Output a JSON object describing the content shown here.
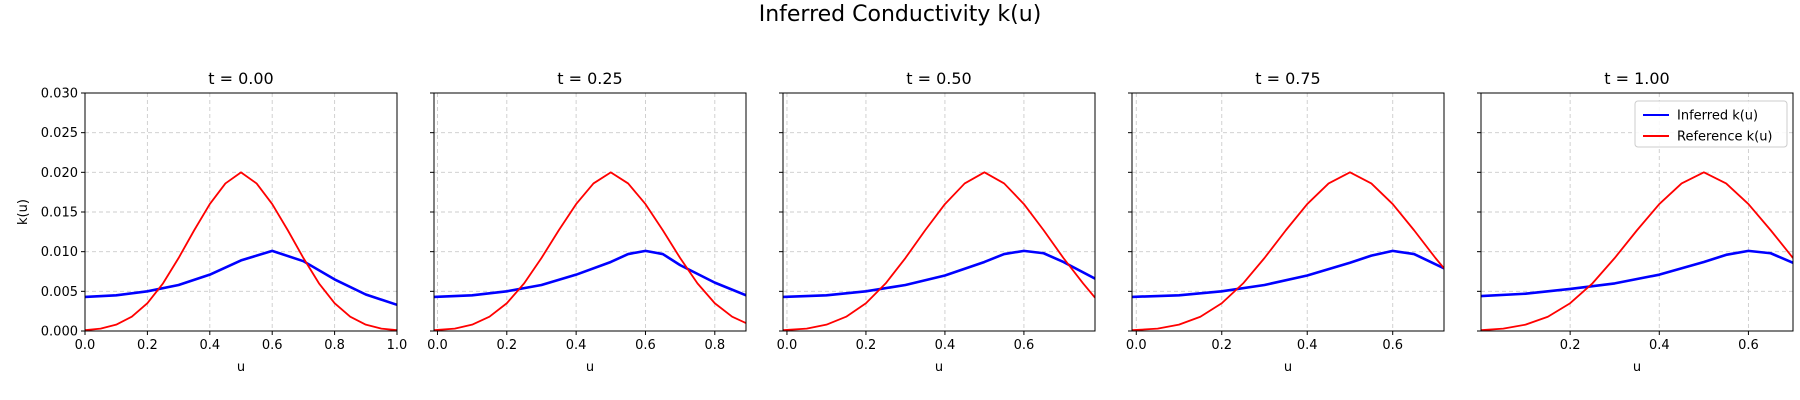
{
  "figure": {
    "title": "Inferred Conductivity k(u)"
  },
  "colors": {
    "inferred": "#0000ff",
    "reference": "#ff0000",
    "grid": "#cccccc"
  },
  "chart_data": [
    {
      "type": "line",
      "title": "t = 0.00",
      "xlabel": "u",
      "ylabel": "k(u)",
      "xlim": [
        0.0,
        1.0
      ],
      "ylim": [
        0.0,
        0.03
      ],
      "xticks": [
        "0.0",
        "0.2",
        "0.4",
        "0.6",
        "0.8",
        "1.0"
      ],
      "xtick_values": [
        0.0,
        0.2,
        0.4,
        0.6,
        0.8,
        1.0
      ],
      "yticks": [
        "0.000",
        "0.005",
        "0.010",
        "0.015",
        "0.020",
        "0.025",
        "0.030"
      ],
      "ytick_values": [
        0.0,
        0.005,
        0.01,
        0.015,
        0.02,
        0.025,
        0.03
      ],
      "grid": true,
      "legend": false,
      "series": [
        {
          "name": "Inferred k(u)",
          "x": [
            0.0,
            0.1,
            0.2,
            0.3,
            0.4,
            0.5,
            0.6,
            0.7,
            0.8,
            0.9,
            1.0
          ],
          "y": [
            0.0043,
            0.0045,
            0.005,
            0.0058,
            0.0071,
            0.0089,
            0.0101,
            0.0088,
            0.0065,
            0.0046,
            0.0033
          ]
        },
        {
          "name": "Reference k(u)",
          "x": [
            0.0,
            0.05,
            0.1,
            0.15,
            0.2,
            0.25,
            0.3,
            0.35,
            0.4,
            0.45,
            0.5,
            0.55,
            0.6,
            0.65,
            0.7,
            0.75,
            0.8,
            0.85,
            0.9,
            0.95,
            1.0
          ],
          "y": [
            0.0001,
            0.0003,
            0.0008,
            0.0018,
            0.0035,
            0.006,
            0.0092,
            0.0127,
            0.016,
            0.0186,
            0.02,
            0.0186,
            0.016,
            0.0127,
            0.0092,
            0.006,
            0.0035,
            0.0018,
            0.0008,
            0.0003,
            0.0001
          ]
        }
      ]
    },
    {
      "type": "line",
      "title": "t = 0.25",
      "xlabel": "u",
      "ylabel": "",
      "xlim": [
        -0.01,
        0.89
      ],
      "ylim": [
        0.0,
        0.03
      ],
      "xticks": [
        "0.0",
        "0.2",
        "0.4",
        "0.6",
        "0.8"
      ],
      "xtick_values": [
        0.0,
        0.2,
        0.4,
        0.6,
        0.8
      ],
      "yticks": [],
      "ytick_values": [
        0.0,
        0.005,
        0.01,
        0.015,
        0.02,
        0.025,
        0.03
      ],
      "grid": true,
      "legend": false,
      "series": [
        {
          "name": "Inferred k(u)",
          "x": [
            -0.01,
            0.1,
            0.2,
            0.3,
            0.4,
            0.5,
            0.55,
            0.6,
            0.65,
            0.7,
            0.8,
            0.89
          ],
          "y": [
            0.0043,
            0.0045,
            0.005,
            0.0058,
            0.0071,
            0.0087,
            0.0097,
            0.0101,
            0.0097,
            0.0083,
            0.0061,
            0.0045
          ]
        },
        {
          "name": "Reference k(u)",
          "x": [
            -0.01,
            0.05,
            0.1,
            0.15,
            0.2,
            0.25,
            0.3,
            0.35,
            0.4,
            0.45,
            0.5,
            0.55,
            0.6,
            0.65,
            0.7,
            0.75,
            0.8,
            0.85,
            0.89
          ],
          "y": [
            0.0001,
            0.0003,
            0.0008,
            0.0018,
            0.0035,
            0.006,
            0.0092,
            0.0127,
            0.016,
            0.0186,
            0.02,
            0.0186,
            0.016,
            0.0127,
            0.0092,
            0.006,
            0.0035,
            0.0018,
            0.001
          ]
        }
      ]
    },
    {
      "type": "line",
      "title": "t = 0.50",
      "xlabel": "u",
      "ylabel": "",
      "xlim": [
        -0.01,
        0.78
      ],
      "ylim": [
        0.0,
        0.03
      ],
      "xticks": [
        "0.0",
        "0.2",
        "0.4",
        "0.6"
      ],
      "xtick_values": [
        0.0,
        0.2,
        0.4,
        0.6
      ],
      "yticks": [],
      "ytick_values": [
        0.0,
        0.005,
        0.01,
        0.015,
        0.02,
        0.025,
        0.03
      ],
      "grid": true,
      "legend": false,
      "series": [
        {
          "name": "Inferred k(u)",
          "x": [
            -0.01,
            0.1,
            0.2,
            0.3,
            0.4,
            0.5,
            0.55,
            0.6,
            0.65,
            0.7,
            0.78
          ],
          "y": [
            0.0043,
            0.0045,
            0.005,
            0.0058,
            0.007,
            0.0087,
            0.0097,
            0.0101,
            0.0098,
            0.0087,
            0.0066
          ]
        },
        {
          "name": "Reference k(u)",
          "x": [
            -0.01,
            0.05,
            0.1,
            0.15,
            0.2,
            0.25,
            0.3,
            0.35,
            0.4,
            0.45,
            0.5,
            0.55,
            0.6,
            0.65,
            0.7,
            0.75,
            0.78
          ],
          "y": [
            0.0001,
            0.0003,
            0.0008,
            0.0018,
            0.0035,
            0.006,
            0.0092,
            0.0127,
            0.016,
            0.0186,
            0.02,
            0.0186,
            0.016,
            0.0127,
            0.0092,
            0.006,
            0.0042
          ]
        }
      ]
    },
    {
      "type": "line",
      "title": "t = 0.75",
      "xlabel": "u",
      "ylabel": "",
      "xlim": [
        -0.01,
        0.72
      ],
      "ylim": [
        0.0,
        0.03
      ],
      "xticks": [
        "0.0",
        "0.2",
        "0.4",
        "0.6"
      ],
      "xtick_values": [
        0.0,
        0.2,
        0.4,
        0.6
      ],
      "yticks": [],
      "ytick_values": [
        0.0,
        0.005,
        0.01,
        0.015,
        0.02,
        0.025,
        0.03
      ],
      "grid": true,
      "legend": false,
      "series": [
        {
          "name": "Inferred k(u)",
          "x": [
            -0.01,
            0.1,
            0.2,
            0.3,
            0.4,
            0.5,
            0.55,
            0.6,
            0.65,
            0.72
          ],
          "y": [
            0.0043,
            0.0045,
            0.005,
            0.0058,
            0.007,
            0.0086,
            0.0095,
            0.0101,
            0.0097,
            0.0079
          ]
        },
        {
          "name": "Reference k(u)",
          "x": [
            -0.01,
            0.05,
            0.1,
            0.15,
            0.2,
            0.25,
            0.3,
            0.35,
            0.4,
            0.45,
            0.5,
            0.55,
            0.6,
            0.65,
            0.7,
            0.72
          ],
          "y": [
            0.0001,
            0.0003,
            0.0008,
            0.0018,
            0.0035,
            0.006,
            0.0092,
            0.0127,
            0.016,
            0.0186,
            0.02,
            0.0186,
            0.016,
            0.0127,
            0.0092,
            0.0079
          ]
        }
      ]
    },
    {
      "type": "line",
      "title": "t = 1.00",
      "xlabel": "u",
      "ylabel": "",
      "xlim": [
        0.0,
        0.7
      ],
      "ylim": [
        0.0,
        0.03
      ],
      "xticks": [
        "0.2",
        "0.4",
        "0.6"
      ],
      "xtick_values": [
        0.2,
        0.4,
        0.6
      ],
      "yticks": [],
      "ytick_values": [
        0.0,
        0.005,
        0.01,
        0.015,
        0.02,
        0.025,
        0.03
      ],
      "grid": true,
      "legend": true,
      "legend_position": "top-right",
      "series": [
        {
          "name": "Inferred k(u)",
          "x": [
            0.0,
            0.1,
            0.2,
            0.3,
            0.4,
            0.5,
            0.55,
            0.6,
            0.65,
            0.7
          ],
          "y": [
            0.0044,
            0.0047,
            0.0053,
            0.006,
            0.0071,
            0.0087,
            0.0096,
            0.0101,
            0.0098,
            0.0086
          ]
        },
        {
          "name": "Reference k(u)",
          "x": [
            0.0,
            0.05,
            0.1,
            0.15,
            0.2,
            0.25,
            0.3,
            0.35,
            0.4,
            0.45,
            0.5,
            0.55,
            0.6,
            0.65,
            0.7
          ],
          "y": [
            0.0001,
            0.0003,
            0.0008,
            0.0018,
            0.0035,
            0.006,
            0.0092,
            0.0127,
            0.016,
            0.0186,
            0.02,
            0.0186,
            0.016,
            0.0127,
            0.0092
          ]
        }
      ]
    }
  ]
}
